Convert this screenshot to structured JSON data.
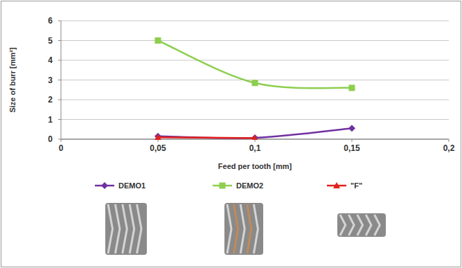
{
  "chart_data": {
    "type": "line",
    "x_label": "Feed per tooth [mm]",
    "y_label": "Size of burr [mm²]",
    "x": [
      0.05,
      0.1,
      0.15
    ],
    "series": [
      {
        "name": "DEMO1",
        "color": "#7030a0",
        "marker": "diamond",
        "line_style": "smooth",
        "values": [
          0.15,
          0.07,
          0.55
        ]
      },
      {
        "name": "DEMO2",
        "color": "#8dce4f",
        "marker": "square",
        "line_style": "smooth",
        "values": [
          5.0,
          2.85,
          2.6
        ]
      },
      {
        "name": "\"F\"",
        "color": "#e2201c",
        "marker": "triangle",
        "line_style": "smooth",
        "values": [
          0.1,
          0.05,
          null
        ]
      }
    ],
    "xlim": [
      0,
      0.2
    ],
    "xticks": [
      0,
      {
        "value": 0.05,
        "label": "0,05"
      },
      {
        "value": 0.1,
        "label": "0,1"
      },
      {
        "value": 0.15,
        "label": "0,15"
      },
      {
        "value": 0.2,
        "label": "0,2"
      }
    ],
    "ylim": [
      0,
      6
    ],
    "yticks": [
      0,
      1,
      2,
      3,
      4,
      5,
      6
    ],
    "grid": true,
    "legend": "bottom"
  }
}
